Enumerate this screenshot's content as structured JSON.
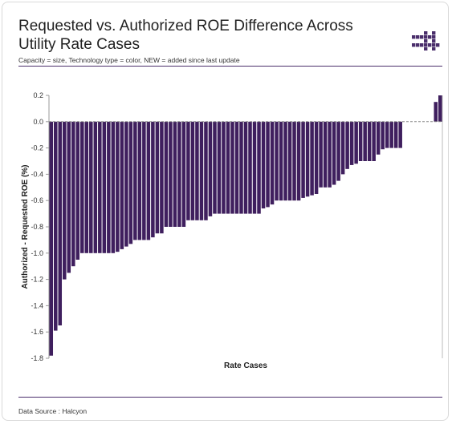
{
  "header": {
    "title": "Requested vs. Authorized ROE Difference Across Utility Rate Cases",
    "subtitle": "Capacity = size, Technology type = color, NEW = added since last update"
  },
  "footer": {
    "source": "Data Source : Halcyon"
  },
  "colors": {
    "bar": "#3f1f5e",
    "rule": "#4a2e6b",
    "logo": "#4a2e6b"
  },
  "chart_data": {
    "type": "bar",
    "xlabel": "Rate Cases",
    "ylabel": "Authorized - Requested ROE (%)",
    "ylim": [
      -1.8,
      0.2
    ],
    "yticks": [
      0.2,
      0.0,
      -0.2,
      -0.4,
      -0.6,
      -0.8,
      -1.0,
      -1.2,
      -1.4,
      -1.6,
      -1.8
    ],
    "ytick_labels": [
      "0.2",
      "0.0",
      "-0.2",
      "-0.4",
      "-0.6",
      "-0.8",
      "-1.0",
      "-1.2",
      "-1.4",
      "-1.6",
      "-1.8"
    ],
    "grid": false,
    "zero_line": "dashed",
    "values": [
      -1.78,
      -1.59,
      -1.55,
      -1.2,
      -1.15,
      -1.1,
      -1.05,
      -1.0,
      -1.0,
      -1.0,
      -1.0,
      -1.0,
      -1.0,
      -1.0,
      -1.0,
      -0.99,
      -0.97,
      -0.95,
      -0.93,
      -0.9,
      -0.9,
      -0.9,
      -0.9,
      -0.88,
      -0.85,
      -0.85,
      -0.8,
      -0.8,
      -0.8,
      -0.8,
      -0.8,
      -0.75,
      -0.75,
      -0.75,
      -0.75,
      -0.75,
      -0.72,
      -0.7,
      -0.7,
      -0.7,
      -0.7,
      -0.7,
      -0.7,
      -0.7,
      -0.7,
      -0.7,
      -0.7,
      -0.7,
      -0.66,
      -0.65,
      -0.63,
      -0.6,
      -0.6,
      -0.6,
      -0.6,
      -0.6,
      -0.6,
      -0.58,
      -0.57,
      -0.56,
      -0.55,
      -0.5,
      -0.5,
      -0.5,
      -0.48,
      -0.45,
      -0.4,
      -0.36,
      -0.33,
      -0.32,
      -0.3,
      -0.3,
      -0.3,
      -0.3,
      -0.25,
      -0.21,
      -0.2,
      -0.2,
      -0.2,
      -0.2,
      null,
      null,
      null,
      null,
      null,
      null,
      null,
      0.15,
      0.2
    ]
  }
}
